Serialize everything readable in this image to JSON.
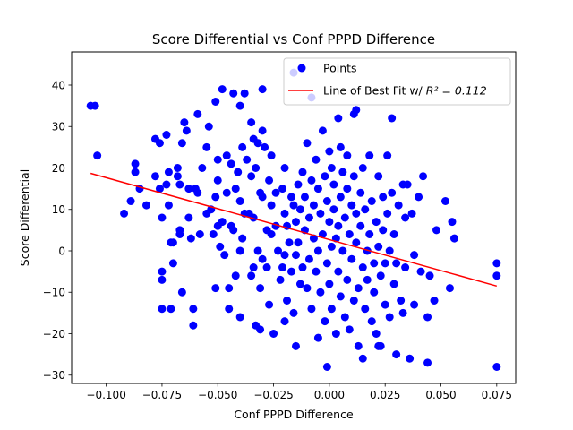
{
  "chart_data": {
    "type": "scatter",
    "title": "Score Differential vs Conf PPPD Difference",
    "xlabel": "Conf PPPD Difference",
    "ylabel": "Score Differential",
    "xlim": [
      -0.1155,
      0.0835
    ],
    "ylim": [
      -32,
      48
    ],
    "xticks": [
      -0.1,
      -0.075,
      -0.05,
      -0.025,
      0.0,
      0.025,
      0.05,
      0.075
    ],
    "xtick_labels": [
      "−0.100",
      "−0.075",
      "−0.050",
      "−0.025",
      "0.000",
      "0.025",
      "0.050",
      "0.075"
    ],
    "yticks": [
      -30,
      -20,
      -10,
      0,
      10,
      20,
      30,
      40
    ],
    "ytick_labels": [
      "−30",
      "−20",
      "−10",
      "0",
      "10",
      "20",
      "30",
      "40"
    ],
    "grid": false,
    "legend": {
      "placement": "top-right"
    },
    "series": [
      {
        "name": "Points",
        "kind": "scatter",
        "color": "#0000ff",
        "points": [
          [
            -0.107,
            35
          ],
          [
            -0.105,
            35
          ],
          [
            -0.104,
            23
          ],
          [
            -0.092,
            9
          ],
          [
            -0.089,
            12
          ],
          [
            -0.087,
            21
          ],
          [
            -0.087,
            19
          ],
          [
            -0.085,
            15
          ],
          [
            -0.082,
            11
          ],
          [
            -0.078,
            27
          ],
          [
            -0.078,
            18
          ],
          [
            -0.076,
            26
          ],
          [
            -0.076,
            15
          ],
          [
            -0.075,
            8
          ],
          [
            -0.075,
            -5
          ],
          [
            -0.075,
            -7
          ],
          [
            -0.075,
            -14
          ],
          [
            -0.073,
            28
          ],
          [
            -0.073,
            16
          ],
          [
            -0.072,
            19
          ],
          [
            -0.072,
            11
          ],
          [
            -0.071,
            2
          ],
          [
            -0.071,
            -14
          ],
          [
            -0.07,
            2
          ],
          [
            -0.07,
            -3
          ],
          [
            -0.068,
            20
          ],
          [
            -0.068,
            18
          ],
          [
            -0.067,
            16
          ],
          [
            -0.067,
            5
          ],
          [
            -0.067,
            4
          ],
          [
            -0.066,
            26
          ],
          [
            -0.066,
            -10
          ],
          [
            -0.065,
            31
          ],
          [
            -0.064,
            29
          ],
          [
            -0.063,
            15
          ],
          [
            -0.063,
            8
          ],
          [
            -0.062,
            3
          ],
          [
            -0.061,
            -14
          ],
          [
            -0.061,
            -18
          ],
          [
            -0.06,
            15
          ],
          [
            -0.059,
            33
          ],
          [
            -0.059,
            14
          ],
          [
            -0.058,
            4
          ],
          [
            -0.057,
            20
          ],
          [
            -0.055,
            25
          ],
          [
            -0.055,
            9
          ],
          [
            -0.054,
            30
          ],
          [
            -0.053,
            10
          ],
          [
            -0.052,
            4
          ],
          [
            -0.051,
            36
          ],
          [
            -0.051,
            13
          ],
          [
            -0.051,
            -9
          ],
          [
            -0.05,
            22
          ],
          [
            -0.05,
            17
          ],
          [
            -0.05,
            6
          ],
          [
            -0.049,
            1
          ],
          [
            -0.048,
            39
          ],
          [
            -0.048,
            7
          ],
          [
            -0.047,
            -1
          ],
          [
            -0.046,
            23
          ],
          [
            -0.046,
            14
          ],
          [
            -0.045,
            -9
          ],
          [
            -0.045,
            -14
          ],
          [
            -0.044,
            21
          ],
          [
            -0.044,
            6
          ],
          [
            -0.043,
            38
          ],
          [
            -0.043,
            5
          ],
          [
            -0.042,
            15
          ],
          [
            -0.042,
            -6
          ],
          [
            -0.041,
            19
          ],
          [
            -0.04,
            35
          ],
          [
            -0.04,
            12
          ],
          [
            -0.04,
            0
          ],
          [
            -0.04,
            -16
          ],
          [
            -0.039,
            25
          ],
          [
            -0.039,
            3
          ],
          [
            -0.038,
            38
          ],
          [
            -0.038,
            9
          ],
          [
            -0.037,
            22
          ],
          [
            -0.036,
            9
          ],
          [
            -0.035,
            31
          ],
          [
            -0.035,
            18
          ],
          [
            -0.035,
            -6
          ],
          [
            -0.034,
            27
          ],
          [
            -0.034,
            8
          ],
          [
            -0.034,
            -4
          ],
          [
            -0.033,
            20
          ],
          [
            -0.033,
            -18
          ],
          [
            -0.032,
            26
          ],
          [
            -0.032,
            0
          ],
          [
            -0.031,
            14
          ],
          [
            -0.031,
            -9
          ],
          [
            -0.031,
            -19
          ],
          [
            -0.03,
            39
          ],
          [
            -0.03,
            29
          ],
          [
            -0.03,
            13
          ],
          [
            -0.03,
            -2
          ],
          [
            -0.029,
            25
          ],
          [
            -0.028,
            5
          ],
          [
            -0.028,
            -4
          ],
          [
            -0.027,
            17
          ],
          [
            -0.027,
            -13
          ],
          [
            -0.026,
            23
          ],
          [
            -0.026,
            11
          ],
          [
            -0.026,
            4
          ],
          [
            -0.025,
            -20
          ],
          [
            -0.024,
            14
          ],
          [
            -0.024,
            6
          ],
          [
            -0.023,
            0
          ],
          [
            -0.022,
            -7
          ],
          [
            -0.021,
            15
          ],
          [
            -0.021,
            -4
          ],
          [
            -0.02,
            20
          ],
          [
            -0.02,
            9
          ],
          [
            -0.02,
            -1
          ],
          [
            -0.02,
            -17
          ],
          [
            -0.019,
            6
          ],
          [
            -0.019,
            -12
          ],
          [
            -0.018,
            2
          ],
          [
            -0.017,
            13
          ],
          [
            -0.017,
            -5
          ],
          [
            -0.016,
            43
          ],
          [
            -0.016,
            11
          ],
          [
            -0.016,
            -15
          ],
          [
            -0.015,
            7
          ],
          [
            -0.015,
            -1
          ],
          [
            -0.015,
            -23
          ],
          [
            -0.014,
            16
          ],
          [
            -0.014,
            2
          ],
          [
            -0.013,
            10
          ],
          [
            -0.013,
            -8
          ],
          [
            -0.012,
            19
          ],
          [
            -0.012,
            -4
          ],
          [
            -0.011,
            13
          ],
          [
            -0.011,
            5
          ],
          [
            -0.01,
            26
          ],
          [
            -0.01,
            -9
          ],
          [
            -0.009,
            8
          ],
          [
            -0.009,
            -2
          ],
          [
            -0.008,
            37
          ],
          [
            -0.008,
            17
          ],
          [
            -0.008,
            -14
          ],
          [
            -0.007,
            11
          ],
          [
            -0.007,
            3
          ],
          [
            -0.006,
            22
          ],
          [
            -0.006,
            -5
          ],
          [
            -0.005,
            15
          ],
          [
            -0.005,
            0
          ],
          [
            -0.005,
            -21
          ],
          [
            -0.004,
            9
          ],
          [
            -0.004,
            -10
          ],
          [
            -0.003,
            29
          ],
          [
            -0.003,
            4
          ],
          [
            -0.002,
            18
          ],
          [
            -0.002,
            -17
          ],
          [
            -0.001,
            12
          ],
          [
            -0.001,
            -3
          ],
          [
            0.0,
            24
          ],
          [
            0.0,
            7
          ],
          [
            0.0,
            -8
          ],
          [
            0.001,
            20
          ],
          [
            0.001,
            1
          ],
          [
            0.001,
            -14
          ],
          [
            0.002,
            16
          ],
          [
            0.002,
            10
          ],
          [
            0.003,
            -20
          ],
          [
            0.003,
            3
          ],
          [
            0.004,
            32
          ],
          [
            0.004,
            6
          ],
          [
            0.004,
            -5
          ],
          [
            0.005,
            25
          ],
          [
            0.005,
            13
          ],
          [
            0.005,
            -11
          ],
          [
            0.006,
            19
          ],
          [
            0.006,
            0
          ],
          [
            0.007,
            8
          ],
          [
            0.007,
            -16
          ],
          [
            0.008,
            23
          ],
          [
            0.008,
            15
          ],
          [
            0.008,
            -7
          ],
          [
            0.009,
            4
          ],
          [
            0.009,
            -19
          ],
          [
            0.01,
            11
          ],
          [
            0.01,
            -2
          ],
          [
            0.011,
            33
          ],
          [
            0.011,
            18
          ],
          [
            0.011,
            -12
          ],
          [
            0.012,
            9
          ],
          [
            0.012,
            2
          ],
          [
            0.013,
            -9
          ],
          [
            0.013,
            -23
          ],
          [
            0.014,
            14
          ],
          [
            0.014,
            6
          ],
          [
            0.015,
            20
          ],
          [
            0.015,
            -4
          ],
          [
            0.015,
            -26
          ],
          [
            0.016,
            10
          ],
          [
            0.016,
            -14
          ],
          [
            0.017,
            0
          ],
          [
            0.017,
            -7
          ],
          [
            0.018,
            23
          ],
          [
            0.018,
            4
          ],
          [
            0.019,
            -17
          ],
          [
            0.019,
            12
          ],
          [
            0.02,
            -10
          ],
          [
            0.02,
            -3
          ],
          [
            0.021,
            7
          ],
          [
            0.021,
            -20
          ],
          [
            0.022,
            18
          ],
          [
            0.022,
            1
          ],
          [
            0.023,
            -6
          ],
          [
            0.023,
            -23
          ],
          [
            0.024,
            13
          ],
          [
            0.024,
            5
          ],
          [
            0.025,
            -13
          ],
          [
            0.025,
            -3
          ],
          [
            0.026,
            23
          ],
          [
            0.026,
            9
          ],
          [
            0.027,
            0
          ],
          [
            0.027,
            -16
          ],
          [
            0.028,
            32
          ],
          [
            0.028,
            14
          ],
          [
            0.029,
            -8
          ],
          [
            0.029,
            4
          ],
          [
            0.03,
            -25
          ],
          [
            0.03,
            -3
          ],
          [
            0.031,
            11
          ],
          [
            0.032,
            -12
          ],
          [
            0.033,
            16
          ],
          [
            0.033,
            -15
          ],
          [
            0.034,
            8
          ],
          [
            0.034,
            -4
          ],
          [
            0.035,
            16
          ],
          [
            0.036,
            -26
          ],
          [
            0.037,
            9
          ],
          [
            0.038,
            -13
          ],
          [
            0.038,
            -1
          ],
          [
            0.04,
            13
          ],
          [
            0.041,
            -5
          ],
          [
            0.042,
            18
          ],
          [
            0.044,
            -27
          ],
          [
            0.044,
            -16
          ],
          [
            0.045,
            -6
          ],
          [
            0.047,
            -12
          ],
          [
            0.048,
            5
          ],
          [
            0.052,
            12
          ],
          [
            0.054,
            -9
          ],
          [
            0.055,
            7
          ],
          [
            0.056,
            3
          ],
          [
            0.075,
            -3
          ],
          [
            0.075,
            -6
          ],
          [
            0.075,
            -28
          ],
          [
            -0.001,
            -28
          ],
          [
            0.012,
            34
          ],
          [
            0.022,
            -23
          ]
        ]
      },
      {
        "name": "Line of Best Fit w/",
        "name_math": "R² = 0.112",
        "kind": "line",
        "color": "#ff0000",
        "x": [
          -0.107,
          0.075
        ],
        "y": [
          18.7,
          -8.5
        ]
      }
    ]
  }
}
